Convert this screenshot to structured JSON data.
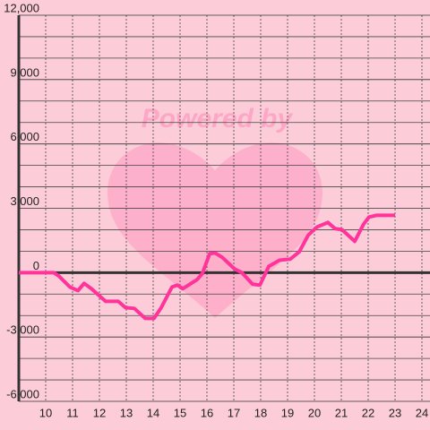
{
  "chart_data": {
    "type": "line",
    "watermark": "Powered by",
    "x": [
      9,
      10.3,
      10.5,
      10.9,
      11.2,
      11.43,
      11.7,
      12.23,
      12.7,
      12.97,
      13.3,
      13.7,
      14.03,
      14.3,
      14.7,
      14.9,
      15.1,
      15.63,
      15.83,
      16.1,
      16.3,
      16.57,
      17.03,
      17.3,
      17.7,
      17.97,
      18.3,
      18.7,
      19.1,
      19.43,
      19.77,
      20.1,
      20.5,
      20.77,
      21.03,
      21.5,
      21.83,
      22.03,
      22.3,
      23
    ],
    "series": [
      {
        "color": "#ff3399",
        "values": [
          0,
          0,
          -170,
          -670,
          -840,
          -500,
          -750,
          -1340,
          -1340,
          -1630,
          -1670,
          -2130,
          -2130,
          -1630,
          -670,
          -580,
          -750,
          -330,
          -40,
          880,
          920,
          710,
          170,
          0,
          -540,
          -580,
          290,
          580,
          630,
          960,
          1750,
          2130,
          2340,
          2050,
          2000,
          1460,
          2260,
          2590,
          2670,
          2670
        ]
      }
    ],
    "xlim": [
      9,
      24.3
    ],
    "xticks": [
      10,
      11,
      12,
      13,
      14,
      15,
      16,
      17,
      18,
      19,
      20,
      21,
      22,
      23,
      24
    ],
    "ylim": [
      -6000,
      12000
    ],
    "yticks": [
      {
        "value": 12000,
        "label": "12,000"
      },
      {
        "value": 9000,
        "label": "9,000"
      },
      {
        "value": 6000,
        "label": "6,000"
      },
      {
        "value": 3000,
        "label": "3,000"
      },
      0,
      {
        "value": -3000,
        "label": "-3,000"
      },
      {
        "value": -6000,
        "label": "-6,000"
      }
    ],
    "ygrid": [
      -5000,
      -4000,
      -2000,
      -1000,
      1000,
      2000,
      4000,
      5000,
      7000,
      8000,
      10000,
      11000
    ],
    "grid": true
  }
}
